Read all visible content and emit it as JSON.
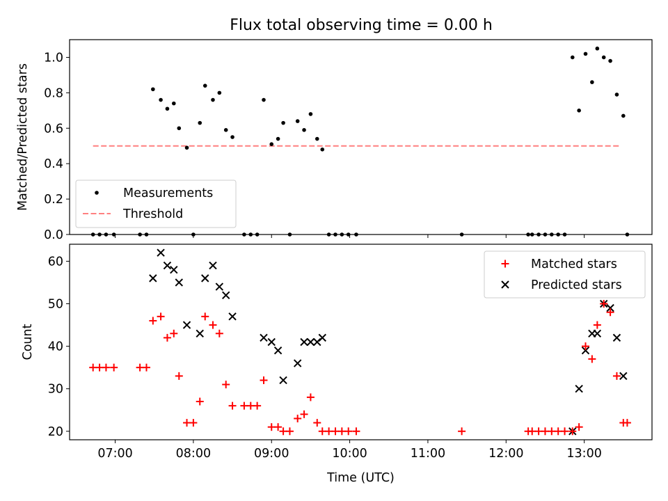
{
  "chart_data": [
    {
      "type": "scatter",
      "title": "Flux total observing time = 0.00 h",
      "ylabel": "Matched/Predicted stars",
      "xlim": [
        "06:25",
        "13:52"
      ],
      "ylim": [
        0,
        1.1
      ],
      "yticks": [
        "0.0",
        "0.2",
        "0.4",
        "0.6",
        "0.8",
        "1.0"
      ],
      "legend": {
        "position": "lower-left",
        "entries": [
          "Measurements",
          "Threshold"
        ]
      },
      "threshold": {
        "name": "Threshold",
        "y": 0.5,
        "x_start": "06:43",
        "x_end": "13:28",
        "color": "#ff7f7f"
      },
      "series": [
        {
          "name": "Measurements",
          "color": "#000000",
          "points": [
            [
              "06:43",
              0.0
            ],
            [
              "06:48",
              0.0
            ],
            [
              "06:53",
              0.0
            ],
            [
              "06:59",
              0.0
            ],
            [
              "07:19",
              0.0
            ],
            [
              "07:24",
              0.0
            ],
            [
              "07:29",
              0.82
            ],
            [
              "07:35",
              0.76
            ],
            [
              "07:40",
              0.71
            ],
            [
              "07:45",
              0.74
            ],
            [
              "07:49",
              0.6
            ],
            [
              "07:55",
              0.49
            ],
            [
              "08:00",
              0.0
            ],
            [
              "08:05",
              0.63
            ],
            [
              "08:09",
              0.84
            ],
            [
              "08:15",
              0.76
            ],
            [
              "08:20",
              0.8
            ],
            [
              "08:25",
              0.59
            ],
            [
              "08:30",
              0.55
            ],
            [
              "08:39",
              0.0
            ],
            [
              "08:44",
              0.0
            ],
            [
              "08:49",
              0.0
            ],
            [
              "08:54",
              0.76
            ],
            [
              "09:00",
              0.51
            ],
            [
              "09:05",
              0.54
            ],
            [
              "09:09",
              0.63
            ],
            [
              "09:14",
              0.0
            ],
            [
              "09:20",
              0.64
            ],
            [
              "09:25",
              0.59
            ],
            [
              "09:30",
              0.68
            ],
            [
              "09:35",
              0.54
            ],
            [
              "09:39",
              0.48
            ],
            [
              "09:44",
              0.0
            ],
            [
              "09:49",
              0.0
            ],
            [
              "09:54",
              0.0
            ],
            [
              "09:59",
              0.0
            ],
            [
              "10:05",
              0.0
            ],
            [
              "11:26",
              0.0
            ],
            [
              "12:17",
              0.0
            ],
            [
              "12:20",
              0.0
            ],
            [
              "12:25",
              0.0
            ],
            [
              "12:30",
              0.0
            ],
            [
              "12:35",
              0.0
            ],
            [
              "12:40",
              0.0
            ],
            [
              "12:45",
              0.0
            ],
            [
              "12:51",
              1.0
            ],
            [
              "12:56",
              0.7
            ],
            [
              "13:01",
              1.02
            ],
            [
              "13:06",
              0.86
            ],
            [
              "13:10",
              1.05
            ],
            [
              "13:15",
              1.0
            ],
            [
              "13:20",
              0.98
            ],
            [
              "13:25",
              0.79
            ],
            [
              "13:30",
              0.67
            ],
            [
              "13:33",
              0.0
            ]
          ]
        }
      ]
    },
    {
      "type": "scatter",
      "xlabel": "Time (UTC)",
      "ylabel": "Count",
      "xlim": [
        "06:25",
        "13:52"
      ],
      "ylim": [
        18,
        64
      ],
      "yticks": [
        "20",
        "30",
        "40",
        "50",
        "60"
      ],
      "xticks": [
        "07:00",
        "08:00",
        "09:00",
        "10:00",
        "11:00",
        "12:00",
        "13:00"
      ],
      "legend": {
        "position": "upper-right",
        "entries": [
          "Matched stars",
          "Predicted stars"
        ]
      },
      "series": [
        {
          "name": "Matched stars",
          "marker": "plus",
          "color": "#ff0000",
          "points": [
            [
              "06:43",
              35
            ],
            [
              "06:48",
              35
            ],
            [
              "06:53",
              35
            ],
            [
              "06:59",
              35
            ],
            [
              "07:19",
              35
            ],
            [
              "07:24",
              35
            ],
            [
              "07:29",
              46
            ],
            [
              "07:35",
              47
            ],
            [
              "07:40",
              42
            ],
            [
              "07:45",
              43
            ],
            [
              "07:49",
              33
            ],
            [
              "07:55",
              22
            ],
            [
              "08:00",
              22
            ],
            [
              "08:05",
              27
            ],
            [
              "08:09",
              47
            ],
            [
              "08:15",
              45
            ],
            [
              "08:20",
              43
            ],
            [
              "08:25",
              31
            ],
            [
              "08:30",
              26
            ],
            [
              "08:39",
              26
            ],
            [
              "08:44",
              26
            ],
            [
              "08:49",
              26
            ],
            [
              "08:54",
              32
            ],
            [
              "09:00",
              21
            ],
            [
              "09:05",
              21
            ],
            [
              "09:09",
              20
            ],
            [
              "09:14",
              20
            ],
            [
              "09:20",
              23
            ],
            [
              "09:25",
              24
            ],
            [
              "09:30",
              28
            ],
            [
              "09:35",
              22
            ],
            [
              "09:39",
              20
            ],
            [
              "09:44",
              20
            ],
            [
              "09:49",
              20
            ],
            [
              "09:54",
              20
            ],
            [
              "09:59",
              20
            ],
            [
              "10:05",
              20
            ],
            [
              "11:26",
              20
            ],
            [
              "12:17",
              20
            ],
            [
              "12:20",
              20
            ],
            [
              "12:25",
              20
            ],
            [
              "12:30",
              20
            ],
            [
              "12:35",
              20
            ],
            [
              "12:40",
              20
            ],
            [
              "12:45",
              20
            ],
            [
              "12:51",
              20
            ],
            [
              "12:56",
              21
            ],
            [
              "13:01",
              40
            ],
            [
              "13:06",
              37
            ],
            [
              "13:10",
              45
            ],
            [
              "13:15",
              50
            ],
            [
              "13:20",
              48
            ],
            [
              "13:25",
              33
            ],
            [
              "13:30",
              22
            ],
            [
              "13:33",
              22
            ]
          ]
        },
        {
          "name": "Predicted stars",
          "marker": "x",
          "color": "#000000",
          "points": [
            [
              "07:29",
              56
            ],
            [
              "07:35",
              62
            ],
            [
              "07:40",
              59
            ],
            [
              "07:45",
              58
            ],
            [
              "07:49",
              55
            ],
            [
              "07:55",
              45
            ],
            [
              "08:05",
              43
            ],
            [
              "08:09",
              56
            ],
            [
              "08:15",
              59
            ],
            [
              "08:20",
              54
            ],
            [
              "08:25",
              52
            ],
            [
              "08:30",
              47
            ],
            [
              "08:54",
              42
            ],
            [
              "09:00",
              41
            ],
            [
              "09:05",
              39
            ],
            [
              "09:09",
              32
            ],
            [
              "09:20",
              36
            ],
            [
              "09:25",
              41
            ],
            [
              "09:30",
              41
            ],
            [
              "09:35",
              41
            ],
            [
              "09:39",
              42
            ],
            [
              "12:51",
              20
            ],
            [
              "12:56",
              30
            ],
            [
              "13:01",
              39
            ],
            [
              "13:06",
              43
            ],
            [
              "13:10",
              43
            ],
            [
              "13:15",
              50
            ],
            [
              "13:20",
              49
            ],
            [
              "13:25",
              42
            ],
            [
              "13:30",
              33
            ]
          ]
        }
      ]
    }
  ]
}
